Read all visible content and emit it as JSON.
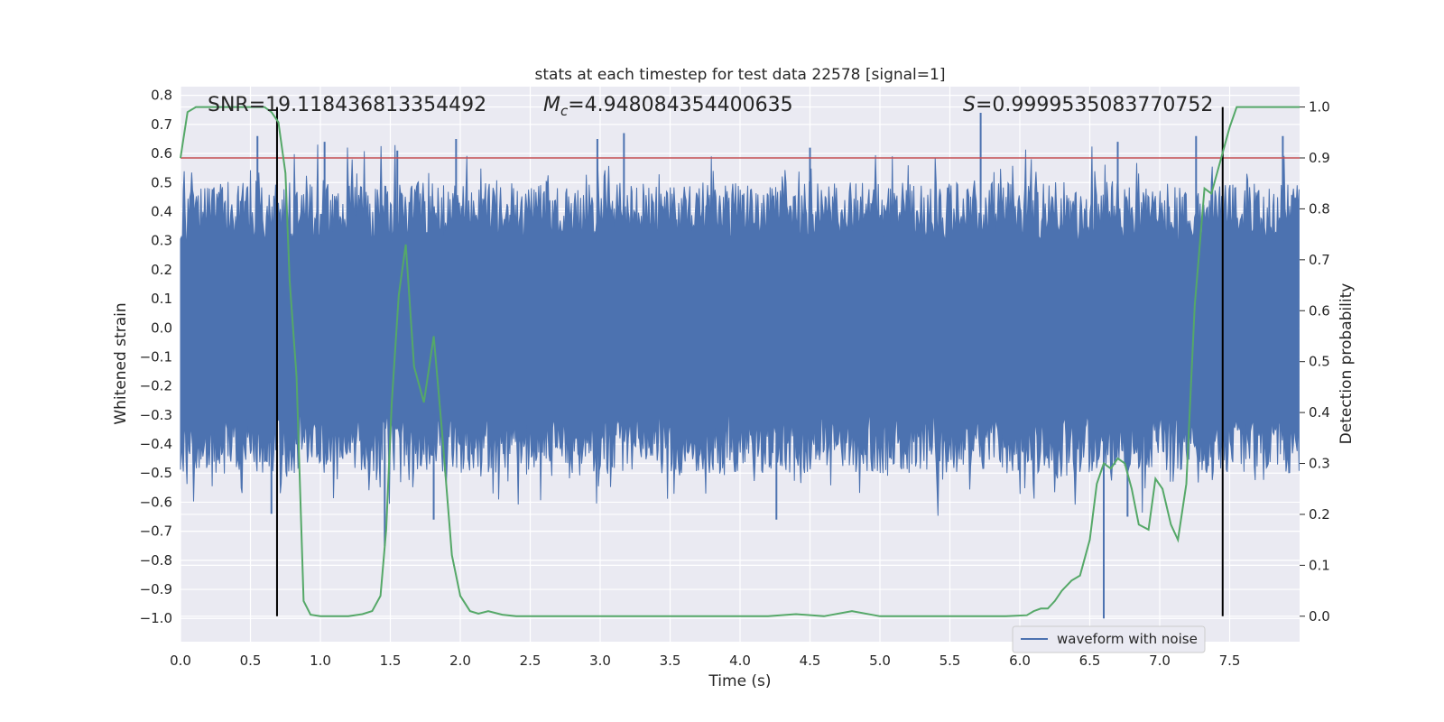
{
  "chart_data": {
    "type": "line",
    "title": "stats at each timestep for test data 22578 [signal=1]",
    "xlabel": "Time (s)",
    "ylabel_left": "Whitened strain",
    "ylabel_right": "Detection probability",
    "xlim": [
      0.0,
      8.0
    ],
    "ylim_left": [
      -1.08,
      0.83
    ],
    "ylim_right": [
      -0.05,
      1.04
    ],
    "xticks": [
      0.0,
      0.5,
      1.0,
      1.5,
      2.0,
      2.5,
      3.0,
      3.5,
      4.0,
      4.5,
      5.0,
      5.5,
      6.0,
      6.5,
      7.0,
      7.5
    ],
    "xtick_labels": [
      "0.0",
      "0.5",
      "1.0",
      "1.5",
      "2.0",
      "2.5",
      "3.0",
      "3.5",
      "4.0",
      "4.5",
      "5.0",
      "5.5",
      "6.0",
      "6.5",
      "7.0",
      "7.5"
    ],
    "yticks_left": [
      0.8,
      0.7,
      0.6,
      0.5,
      0.4,
      0.3,
      0.2,
      0.1,
      0.0,
      -0.1,
      -0.2,
      -0.3,
      -0.4,
      -0.5,
      -0.6,
      -0.7,
      -0.8,
      -0.9,
      -1.0
    ],
    "ytick_labels_left": [
      "0.8",
      "0.7",
      "0.6",
      "0.5",
      "0.4",
      "0.3",
      "0.2",
      "0.1",
      "0.0",
      "−0.1",
      "−0.2",
      "−0.3",
      "−0.4",
      "−0.5",
      "−0.6",
      "−0.7",
      "−0.8",
      "−0.9",
      "−1.0"
    ],
    "yticks_right": [
      1.0,
      0.9,
      0.8,
      0.7,
      0.6,
      0.5,
      0.4,
      0.3,
      0.2,
      0.1,
      0.0
    ],
    "ytick_labels_right": [
      "1.0",
      "0.9",
      "0.8",
      "0.7",
      "0.6",
      "0.5",
      "0.4",
      "0.3",
      "0.2",
      "0.1",
      "0.0"
    ],
    "annotations": {
      "snr": "SNR=19.118436813354492",
      "mc_symbol": "M",
      "mc_sub": "c",
      "mc_value": "=4.948084354400635",
      "s_symbol": "S",
      "s_value": "=0.9999535083770752"
    },
    "legend": {
      "label": "waveform with noise",
      "position": "lower-right"
    },
    "threshold_right": 0.9,
    "vertical_markers_x": [
      0.69,
      7.45
    ],
    "marker_ymax_right": 1.0,
    "waveform": {
      "name": "waveform with noise",
      "color": "#4c72b0",
      "core_band": [
        -0.3,
        0.3
      ],
      "seed": 22578,
      "samples": 1200,
      "spikes": [
        {
          "x": 0.55,
          "y": 0.66
        },
        {
          "x": 1.03,
          "y": 0.64
        },
        {
          "x": 1.55,
          "y": 0.61
        },
        {
          "x": 1.97,
          "y": 0.65
        },
        {
          "x": 2.98,
          "y": 0.65
        },
        {
          "x": 3.17,
          "y": 0.67
        },
        {
          "x": 4.5,
          "y": 0.62
        },
        {
          "x": 5.72,
          "y": 0.74
        },
        {
          "x": 6.7,
          "y": 0.64
        },
        {
          "x": 7.26,
          "y": 0.66
        },
        {
          "x": 7.88,
          "y": 0.66
        },
        {
          "x": 0.65,
          "y": -0.64
        },
        {
          "x": 1.46,
          "y": -0.75
        },
        {
          "x": 1.81,
          "y": -0.66
        },
        {
          "x": 4.26,
          "y": -0.66
        },
        {
          "x": 6.6,
          "y": -1.0
        },
        {
          "x": 6.77,
          "y": -0.65
        }
      ]
    },
    "probability": {
      "name": "detection probability",
      "color": "#55a868",
      "x": [
        0.0,
        0.05,
        0.11,
        0.2,
        0.3,
        0.4,
        0.5,
        0.6,
        0.65,
        0.7,
        0.75,
        0.78,
        0.83,
        0.88,
        0.93,
        1.0,
        1.1,
        1.2,
        1.3,
        1.37,
        1.43,
        1.47,
        1.51,
        1.56,
        1.61,
        1.67,
        1.74,
        1.81,
        1.87,
        1.94,
        2.0,
        2.07,
        2.13,
        2.2,
        2.3,
        2.4,
        2.6,
        2.8,
        3.0,
        3.2,
        3.5,
        3.8,
        4.0,
        4.2,
        4.4,
        4.6,
        4.8,
        5.0,
        5.3,
        5.6,
        5.9,
        6.05,
        6.1,
        6.15,
        6.2,
        6.25,
        6.3,
        6.37,
        6.43,
        6.5,
        6.55,
        6.6,
        6.65,
        6.7,
        6.75,
        6.8,
        6.85,
        6.92,
        6.97,
        7.02,
        7.08,
        7.13,
        7.19,
        7.25,
        7.32,
        7.37,
        7.43,
        7.5,
        7.55,
        7.6,
        7.7,
        8.0
      ],
      "y": [
        0.9,
        0.99,
        1.0,
        1.0,
        1.0,
        1.0,
        1.0,
        1.0,
        0.99,
        0.97,
        0.87,
        0.66,
        0.47,
        0.03,
        0.003,
        0.0,
        0.0,
        0.0,
        0.004,
        0.01,
        0.04,
        0.17,
        0.42,
        0.63,
        0.73,
        0.49,
        0.42,
        0.55,
        0.36,
        0.12,
        0.04,
        0.01,
        0.005,
        0.01,
        0.003,
        0.0,
        0.0,
        0.0,
        0.0,
        0.0,
        0.0,
        0.0,
        0.0,
        0.0,
        0.004,
        0.0,
        0.01,
        0.0,
        0.0,
        0.0,
        0.0,
        0.002,
        0.01,
        0.015,
        0.015,
        0.03,
        0.05,
        0.07,
        0.08,
        0.15,
        0.26,
        0.3,
        0.29,
        0.31,
        0.3,
        0.25,
        0.18,
        0.17,
        0.27,
        0.25,
        0.18,
        0.15,
        0.26,
        0.61,
        0.84,
        0.83,
        0.89,
        0.96,
        1.0,
        1.0,
        1.0,
        1.0
      ]
    },
    "colors": {
      "plot_bg": "#eaeaf2",
      "grid": "#ffffff",
      "threshold": "#c44e52",
      "marker": "#000000",
      "text": "#262626"
    }
  }
}
